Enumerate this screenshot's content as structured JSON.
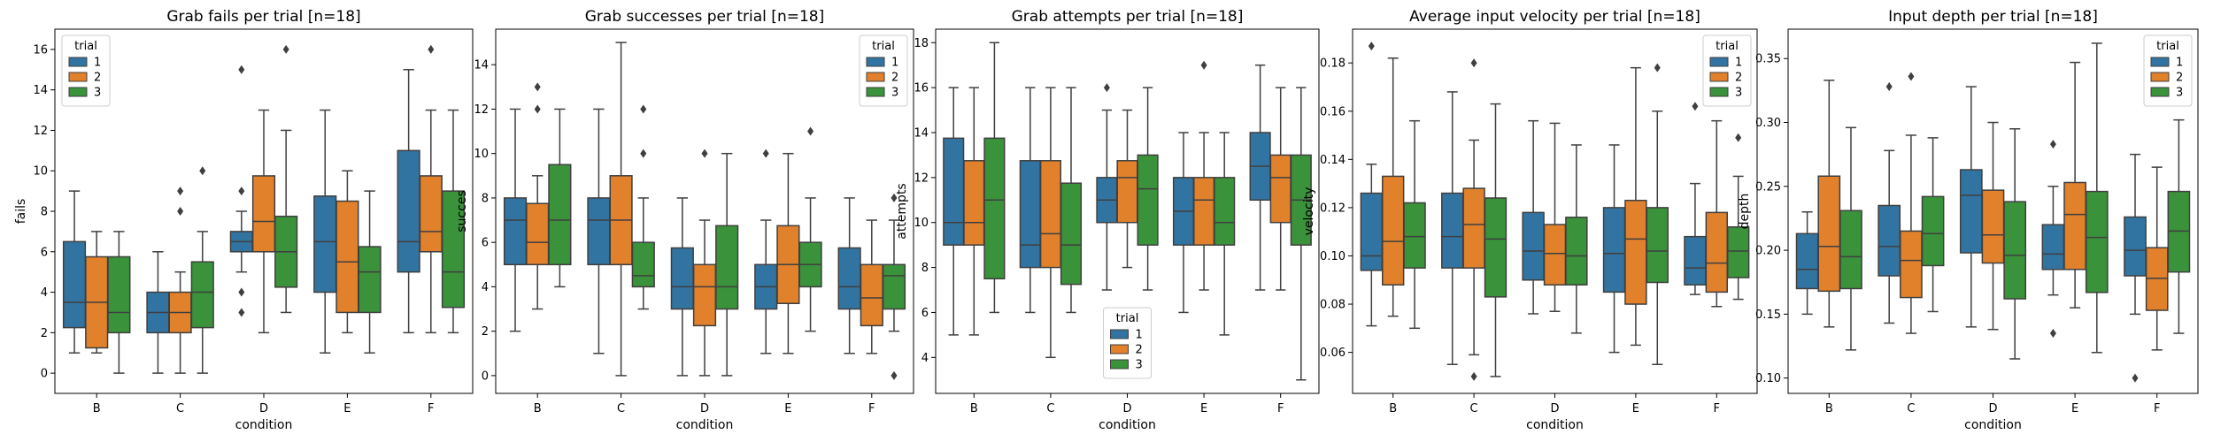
{
  "colors": {
    "1": "#3274a1",
    "2": "#e1812c",
    "3": "#3a923a"
  },
  "legend_title": "trial",
  "chart_data": [
    {
      "type": "boxplot",
      "title": "Grab fails per trial [n=18]",
      "xlabel": "condition",
      "ylabel": "fails",
      "categories": [
        "B",
        "C",
        "D",
        "E",
        "F"
      ],
      "hue_levels": [
        "1",
        "2",
        "3"
      ],
      "ylim": [
        -1,
        17
      ],
      "yticks": [
        0,
        2,
        4,
        6,
        8,
        10,
        12,
        14,
        16
      ],
      "legend_position": "upper left",
      "boxes": [
        {
          "cat": "B",
          "hue": "1",
          "whislo": 1,
          "q1": 2.25,
          "med": 3.5,
          "q3": 6.5,
          "whishi": 9,
          "fliers": []
        },
        {
          "cat": "B",
          "hue": "2",
          "whislo": 1,
          "q1": 1.25,
          "med": 3.5,
          "q3": 5.75,
          "whishi": 7,
          "fliers": []
        },
        {
          "cat": "B",
          "hue": "3",
          "whislo": 0,
          "q1": 2,
          "med": 3,
          "q3": 5.75,
          "whishi": 7,
          "fliers": []
        },
        {
          "cat": "C",
          "hue": "1",
          "whislo": 0,
          "q1": 2,
          "med": 3,
          "q3": 4,
          "whishi": 6,
          "fliers": []
        },
        {
          "cat": "C",
          "hue": "2",
          "whislo": 0,
          "q1": 2,
          "med": 3,
          "q3": 4,
          "whishi": 5,
          "fliers": [
            8,
            9
          ]
        },
        {
          "cat": "C",
          "hue": "3",
          "whislo": 0,
          "q1": 2.25,
          "med": 4,
          "q3": 5.5,
          "whishi": 7,
          "fliers": [
            10
          ]
        },
        {
          "cat": "D",
          "hue": "1",
          "whislo": 5,
          "q1": 6,
          "med": 6.5,
          "q3": 7,
          "whishi": 8,
          "fliers": [
            3,
            4,
            9,
            15
          ]
        },
        {
          "cat": "D",
          "hue": "2",
          "whislo": 2,
          "q1": 6,
          "med": 7.5,
          "q3": 9.75,
          "whishi": 13,
          "fliers": []
        },
        {
          "cat": "D",
          "hue": "3",
          "whislo": 3,
          "q1": 4.25,
          "med": 6,
          "q3": 7.75,
          "whishi": 12,
          "fliers": [
            16
          ]
        },
        {
          "cat": "E",
          "hue": "1",
          "whislo": 1,
          "q1": 4,
          "med": 6.5,
          "q3": 8.75,
          "whishi": 13,
          "fliers": []
        },
        {
          "cat": "E",
          "hue": "2",
          "whislo": 2,
          "q1": 3,
          "med": 5.5,
          "q3": 8.5,
          "whishi": 10,
          "fliers": []
        },
        {
          "cat": "E",
          "hue": "3",
          "whislo": 1,
          "q1": 3,
          "med": 5,
          "q3": 6.25,
          "whishi": 9,
          "fliers": []
        },
        {
          "cat": "F",
          "hue": "1",
          "whislo": 2,
          "q1": 5,
          "med": 6.5,
          "q3": 11,
          "whishi": 15,
          "fliers": []
        },
        {
          "cat": "F",
          "hue": "2",
          "whislo": 2,
          "q1": 6,
          "med": 7,
          "q3": 9.75,
          "whishi": 13,
          "fliers": [
            16
          ]
        },
        {
          "cat": "F",
          "hue": "3",
          "whislo": 2,
          "q1": 3.25,
          "med": 5,
          "q3": 9,
          "whishi": 13,
          "fliers": []
        }
      ]
    },
    {
      "type": "boxplot",
      "title": "Grab successes per trial [n=18]",
      "xlabel": "condition",
      "ylabel": "succes",
      "categories": [
        "B",
        "C",
        "D",
        "E",
        "F"
      ],
      "hue_levels": [
        "1",
        "2",
        "3"
      ],
      "ylim": [
        -0.8,
        15.6
      ],
      "yticks": [
        0,
        2,
        4,
        6,
        8,
        10,
        12,
        14
      ],
      "legend_position": "upper right",
      "boxes": [
        {
          "cat": "B",
          "hue": "1",
          "whislo": 2,
          "q1": 5,
          "med": 7,
          "q3": 8,
          "whishi": 12,
          "fliers": []
        },
        {
          "cat": "B",
          "hue": "2",
          "whislo": 3,
          "q1": 5,
          "med": 6,
          "q3": 7.75,
          "whishi": 9,
          "fliers": [
            12,
            13
          ]
        },
        {
          "cat": "B",
          "hue": "3",
          "whislo": 4,
          "q1": 5,
          "med": 7,
          "q3": 9.5,
          "whishi": 12,
          "fliers": []
        },
        {
          "cat": "C",
          "hue": "1",
          "whislo": 1,
          "q1": 5,
          "med": 7,
          "q3": 8,
          "whishi": 12,
          "fliers": []
        },
        {
          "cat": "C",
          "hue": "2",
          "whislo": 0,
          "q1": 5,
          "med": 7,
          "q3": 9,
          "whishi": 15,
          "fliers": []
        },
        {
          "cat": "C",
          "hue": "3",
          "whislo": 3,
          "q1": 4,
          "med": 4.5,
          "q3": 6,
          "whishi": 8,
          "fliers": [
            10,
            12
          ]
        },
        {
          "cat": "D",
          "hue": "1",
          "whislo": 0,
          "q1": 3,
          "med": 4,
          "q3": 5.75,
          "whishi": 8,
          "fliers": []
        },
        {
          "cat": "D",
          "hue": "2",
          "whislo": 0,
          "q1": 2.25,
          "med": 4,
          "q3": 5,
          "whishi": 7,
          "fliers": [
            10
          ]
        },
        {
          "cat": "D",
          "hue": "3",
          "whislo": 0,
          "q1": 3,
          "med": 4,
          "q3": 6.75,
          "whishi": 10,
          "fliers": []
        },
        {
          "cat": "E",
          "hue": "1",
          "whislo": 1,
          "q1": 3,
          "med": 4,
          "q3": 5,
          "whishi": 7,
          "fliers": [
            10
          ]
        },
        {
          "cat": "E",
          "hue": "2",
          "whislo": 1,
          "q1": 3.25,
          "med": 5,
          "q3": 6.75,
          "whishi": 10,
          "fliers": []
        },
        {
          "cat": "E",
          "hue": "3",
          "whislo": 2,
          "q1": 4,
          "med": 5,
          "q3": 6,
          "whishi": 8,
          "fliers": [
            11
          ]
        },
        {
          "cat": "F",
          "hue": "1",
          "whislo": 1,
          "q1": 3,
          "med": 4,
          "q3": 5.75,
          "whishi": 8,
          "fliers": []
        },
        {
          "cat": "F",
          "hue": "2",
          "whislo": 1,
          "q1": 2.25,
          "med": 3.5,
          "q3": 5,
          "whishi": 7,
          "fliers": []
        },
        {
          "cat": "F",
          "hue": "3",
          "whislo": 2,
          "q1": 3,
          "med": 4.5,
          "q3": 5,
          "whishi": 7,
          "fliers": [
            0,
            8
          ]
        }
      ]
    },
    {
      "type": "boxplot",
      "title": "Grab attempts per trial [n=18]",
      "xlabel": "condition",
      "ylabel": "attempts",
      "categories": [
        "B",
        "C",
        "D",
        "E",
        "F"
      ],
      "hue_levels": [
        "1",
        "2",
        "3"
      ],
      "ylim": [
        2.4,
        18.6
      ],
      "yticks": [
        4,
        6,
        8,
        10,
        12,
        14,
        16,
        18
      ],
      "legend_position": "lower center",
      "boxes": [
        {
          "cat": "B",
          "hue": "1",
          "whislo": 5,
          "q1": 9,
          "med": 10,
          "q3": 13.75,
          "whishi": 16,
          "fliers": []
        },
        {
          "cat": "B",
          "hue": "2",
          "whislo": 5,
          "q1": 9,
          "med": 10,
          "q3": 12.75,
          "whishi": 16,
          "fliers": []
        },
        {
          "cat": "B",
          "hue": "3",
          "whislo": 6,
          "q1": 7.5,
          "med": 11,
          "q3": 13.75,
          "whishi": 18,
          "fliers": []
        },
        {
          "cat": "C",
          "hue": "1",
          "whislo": 6,
          "q1": 8,
          "med": 9,
          "q3": 12.75,
          "whishi": 16,
          "fliers": []
        },
        {
          "cat": "C",
          "hue": "2",
          "whislo": 4,
          "q1": 8,
          "med": 9.5,
          "q3": 12.75,
          "whishi": 16,
          "fliers": []
        },
        {
          "cat": "C",
          "hue": "3",
          "whislo": 6,
          "q1": 7.25,
          "med": 9,
          "q3": 11.75,
          "whishi": 16,
          "fliers": []
        },
        {
          "cat": "D",
          "hue": "1",
          "whislo": 7,
          "q1": 10,
          "med": 11,
          "q3": 12,
          "whishi": 15,
          "fliers": [
            16
          ]
        },
        {
          "cat": "D",
          "hue": "2",
          "whislo": 8,
          "q1": 10,
          "med": 12,
          "q3": 12.75,
          "whishi": 15,
          "fliers": []
        },
        {
          "cat": "D",
          "hue": "3",
          "whislo": 7,
          "q1": 9,
          "med": 11.5,
          "q3": 13,
          "whishi": 16,
          "fliers": []
        },
        {
          "cat": "E",
          "hue": "1",
          "whislo": 6,
          "q1": 9,
          "med": 10.5,
          "q3": 12,
          "whishi": 14,
          "fliers": []
        },
        {
          "cat": "E",
          "hue": "2",
          "whislo": 7,
          "q1": 9,
          "med": 11,
          "q3": 12,
          "whishi": 14,
          "fliers": [
            17
          ]
        },
        {
          "cat": "E",
          "hue": "3",
          "whislo": 5,
          "q1": 9,
          "med": 10,
          "q3": 12,
          "whishi": 14,
          "fliers": []
        },
        {
          "cat": "F",
          "hue": "1",
          "whislo": 7,
          "q1": 11,
          "med": 12.5,
          "q3": 14,
          "whishi": 17,
          "fliers": []
        },
        {
          "cat": "F",
          "hue": "2",
          "whislo": 7,
          "q1": 10,
          "med": 12,
          "q3": 13,
          "whishi": 16,
          "fliers": []
        },
        {
          "cat": "F",
          "hue": "3",
          "whislo": 3,
          "q1": 9,
          "med": 11,
          "q3": 13,
          "whishi": 16,
          "fliers": []
        }
      ]
    },
    {
      "type": "boxplot",
      "title": "Average input velocity per trial [n=18]",
      "xlabel": "condition",
      "ylabel": "velocity",
      "categories": [
        "B",
        "C",
        "D",
        "E",
        "F"
      ],
      "hue_levels": [
        "1",
        "2",
        "3"
      ],
      "ylim": [
        0.043,
        0.194
      ],
      "yticks": [
        0.06,
        0.08,
        0.1,
        0.12,
        0.14,
        0.16,
        0.18
      ],
      "ytick_decimals": 2,
      "legend_position": "upper right",
      "boxes": [
        {
          "cat": "B",
          "hue": "1",
          "whislo": 0.071,
          "q1": 0.094,
          "med": 0.1,
          "q3": 0.126,
          "whishi": 0.138,
          "fliers": [
            0.187
          ]
        },
        {
          "cat": "B",
          "hue": "2",
          "whislo": 0.075,
          "q1": 0.088,
          "med": 0.106,
          "q3": 0.133,
          "whishi": 0.182,
          "fliers": []
        },
        {
          "cat": "B",
          "hue": "3",
          "whislo": 0.07,
          "q1": 0.095,
          "med": 0.108,
          "q3": 0.122,
          "whishi": 0.156,
          "fliers": []
        },
        {
          "cat": "C",
          "hue": "1",
          "whislo": 0.055,
          "q1": 0.095,
          "med": 0.108,
          "q3": 0.126,
          "whishi": 0.168,
          "fliers": []
        },
        {
          "cat": "C",
          "hue": "2",
          "whislo": 0.059,
          "q1": 0.095,
          "med": 0.113,
          "q3": 0.128,
          "whishi": 0.148,
          "fliers": [
            0.05,
            0.18
          ]
        },
        {
          "cat": "C",
          "hue": "3",
          "whislo": 0.05,
          "q1": 0.083,
          "med": 0.107,
          "q3": 0.124,
          "whishi": 0.163,
          "fliers": []
        },
        {
          "cat": "D",
          "hue": "1",
          "whislo": 0.076,
          "q1": 0.09,
          "med": 0.102,
          "q3": 0.118,
          "whishi": 0.156,
          "fliers": []
        },
        {
          "cat": "D",
          "hue": "2",
          "whislo": 0.077,
          "q1": 0.088,
          "med": 0.101,
          "q3": 0.113,
          "whishi": 0.155,
          "fliers": []
        },
        {
          "cat": "D",
          "hue": "3",
          "whislo": 0.068,
          "q1": 0.088,
          "med": 0.1,
          "q3": 0.116,
          "whishi": 0.146,
          "fliers": []
        },
        {
          "cat": "E",
          "hue": "1",
          "whislo": 0.06,
          "q1": 0.085,
          "med": 0.101,
          "q3": 0.12,
          "whishi": 0.146,
          "fliers": []
        },
        {
          "cat": "E",
          "hue": "2",
          "whislo": 0.063,
          "q1": 0.08,
          "med": 0.107,
          "q3": 0.123,
          "whishi": 0.178,
          "fliers": []
        },
        {
          "cat": "E",
          "hue": "3",
          "whislo": 0.055,
          "q1": 0.089,
          "med": 0.102,
          "q3": 0.12,
          "whishi": 0.16,
          "fliers": [
            0.178
          ]
        },
        {
          "cat": "F",
          "hue": "1",
          "whislo": 0.084,
          "q1": 0.088,
          "med": 0.095,
          "q3": 0.108,
          "whishi": 0.13,
          "fliers": [
            0.162
          ]
        },
        {
          "cat": "F",
          "hue": "2",
          "whislo": 0.079,
          "q1": 0.085,
          "med": 0.097,
          "q3": 0.118,
          "whishi": 0.156,
          "fliers": []
        },
        {
          "cat": "F",
          "hue": "3",
          "whislo": 0.082,
          "q1": 0.091,
          "med": 0.102,
          "q3": 0.112,
          "whishi": 0.133,
          "fliers": [
            0.149
          ]
        }
      ]
    },
    {
      "type": "boxplot",
      "title": "Input depth per trial [n=18]",
      "xlabel": "condition",
      "ylabel": "depth",
      "categories": [
        "B",
        "C",
        "D",
        "E",
        "F"
      ],
      "hue_levels": [
        "1",
        "2",
        "3"
      ],
      "ylim": [
        0.088,
        0.373
      ],
      "yticks": [
        0.1,
        0.15,
        0.2,
        0.25,
        0.3,
        0.35
      ],
      "ytick_decimals": 2,
      "legend_position": "upper right",
      "boxes": [
        {
          "cat": "B",
          "hue": "1",
          "whislo": 0.15,
          "q1": 0.17,
          "med": 0.185,
          "q3": 0.213,
          "whishi": 0.23,
          "fliers": []
        },
        {
          "cat": "B",
          "hue": "2",
          "whislo": 0.14,
          "q1": 0.168,
          "med": 0.203,
          "q3": 0.258,
          "whishi": 0.333,
          "fliers": []
        },
        {
          "cat": "B",
          "hue": "3",
          "whislo": 0.122,
          "q1": 0.17,
          "med": 0.195,
          "q3": 0.231,
          "whishi": 0.296,
          "fliers": []
        },
        {
          "cat": "C",
          "hue": "1",
          "whislo": 0.143,
          "q1": 0.18,
          "med": 0.203,
          "q3": 0.235,
          "whishi": 0.278,
          "fliers": [
            0.328
          ]
        },
        {
          "cat": "C",
          "hue": "2",
          "whislo": 0.135,
          "q1": 0.163,
          "med": 0.192,
          "q3": 0.215,
          "whishi": 0.29,
          "fliers": [
            0.336
          ]
        },
        {
          "cat": "C",
          "hue": "3",
          "whislo": 0.152,
          "q1": 0.188,
          "med": 0.213,
          "q3": 0.242,
          "whishi": 0.288,
          "fliers": []
        },
        {
          "cat": "D",
          "hue": "1",
          "whislo": 0.14,
          "q1": 0.198,
          "med": 0.243,
          "q3": 0.263,
          "whishi": 0.328,
          "fliers": []
        },
        {
          "cat": "D",
          "hue": "2",
          "whislo": 0.138,
          "q1": 0.19,
          "med": 0.212,
          "q3": 0.247,
          "whishi": 0.3,
          "fliers": []
        },
        {
          "cat": "D",
          "hue": "3",
          "whislo": 0.115,
          "q1": 0.162,
          "med": 0.196,
          "q3": 0.238,
          "whishi": 0.295,
          "fliers": []
        },
        {
          "cat": "E",
          "hue": "1",
          "whislo": 0.165,
          "q1": 0.185,
          "med": 0.197,
          "q3": 0.22,
          "whishi": 0.25,
          "fliers": [
            0.135,
            0.283
          ]
        },
        {
          "cat": "E",
          "hue": "2",
          "whislo": 0.155,
          "q1": 0.185,
          "med": 0.228,
          "q3": 0.253,
          "whishi": 0.347,
          "fliers": []
        },
        {
          "cat": "E",
          "hue": "3",
          "whislo": 0.12,
          "q1": 0.167,
          "med": 0.21,
          "q3": 0.246,
          "whishi": 0.362,
          "fliers": []
        },
        {
          "cat": "F",
          "hue": "1",
          "whislo": 0.15,
          "q1": 0.18,
          "med": 0.2,
          "q3": 0.226,
          "whishi": 0.275,
          "fliers": [
            0.1
          ]
        },
        {
          "cat": "F",
          "hue": "2",
          "whislo": 0.122,
          "q1": 0.153,
          "med": 0.178,
          "q3": 0.202,
          "whishi": 0.265,
          "fliers": []
        },
        {
          "cat": "F",
          "hue": "3",
          "whislo": 0.135,
          "q1": 0.183,
          "med": 0.215,
          "q3": 0.246,
          "whishi": 0.302,
          "fliers": []
        }
      ]
    }
  ]
}
